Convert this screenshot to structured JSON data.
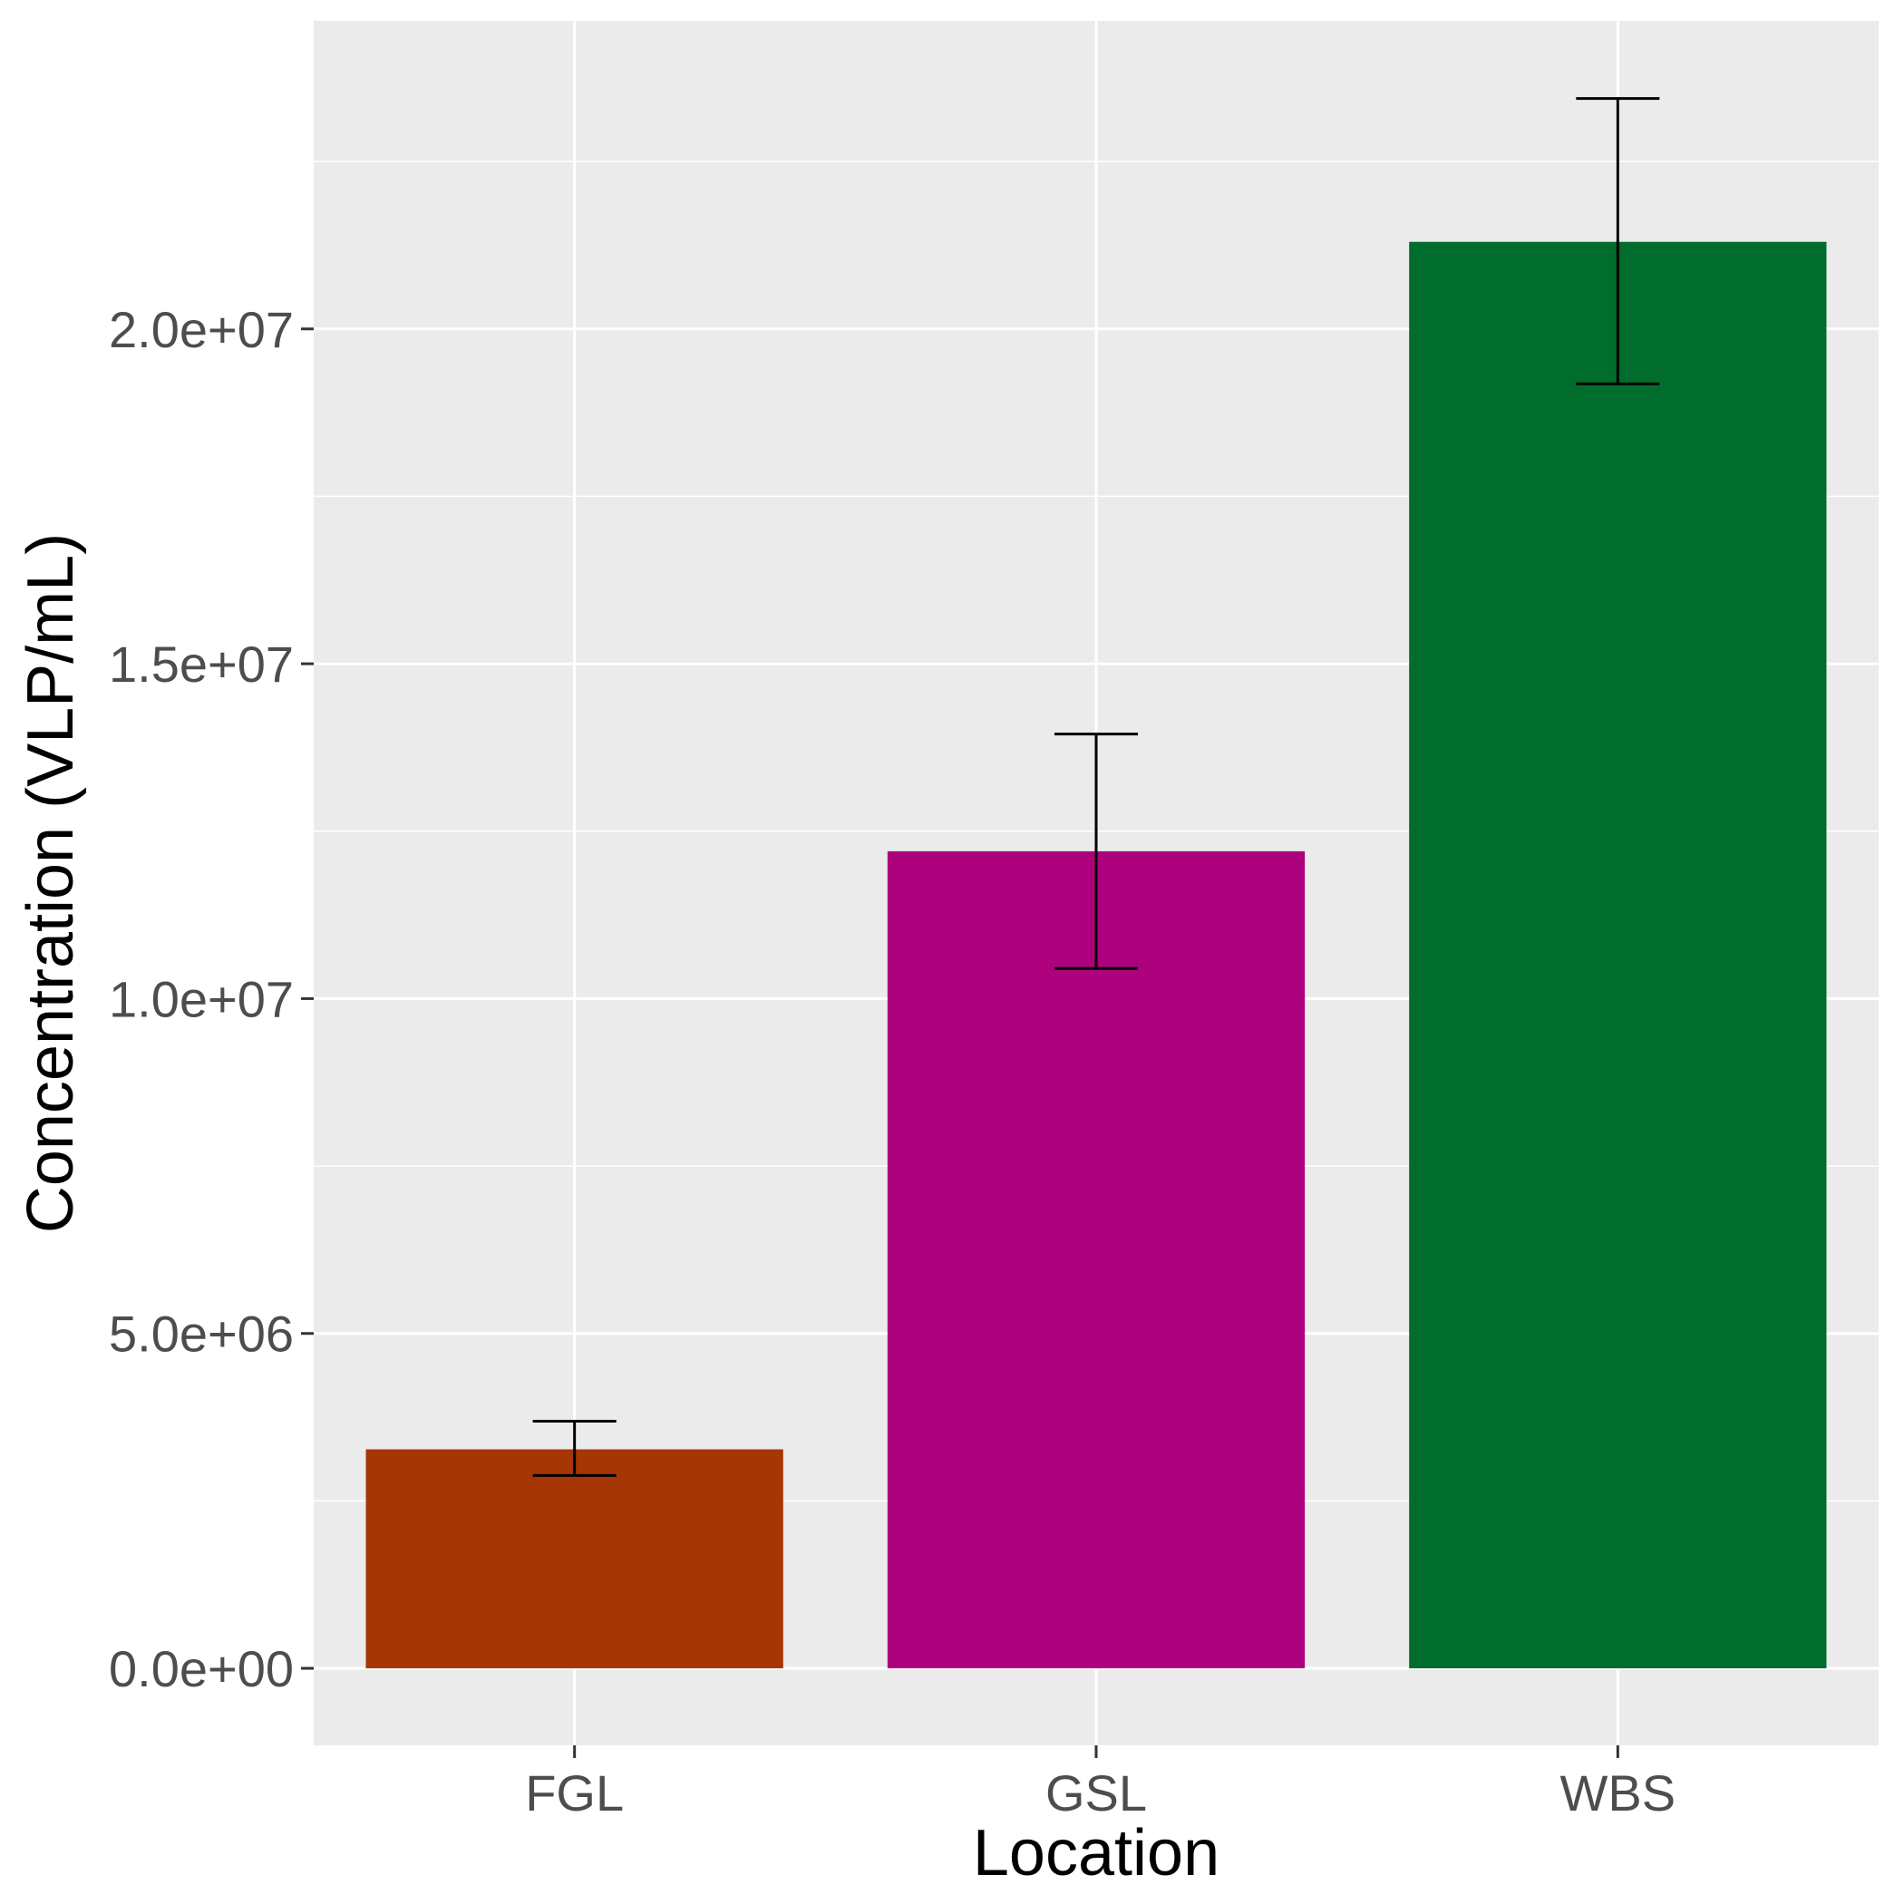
{
  "chart_data": {
    "type": "bar",
    "xlabel": "Location",
    "ylabel": "Concentration (VLP/mL)",
    "categories": [
      "FGL",
      "GSL",
      "WBS"
    ],
    "values": [
      3270000,
      12200000,
      21300000
    ],
    "error_low": [
      2880000,
      10450000,
      19180000
    ],
    "error_high": [
      3690000,
      13950000,
      23440000
    ],
    "colors": [
      "#A63603",
      "#AE017E",
      "#006D2C"
    ],
    "ylim": [
      -1150000,
      24600000
    ],
    "yticks": [
      0,
      5000000,
      10000000,
      15000000,
      20000000
    ],
    "ytick_labels": [
      "0.0e+00",
      "5.0e+06",
      "1.0e+07",
      "1.5e+07",
      "2.0e+07"
    ],
    "grid": true,
    "legend": "none",
    "panel_color": "#EBEBEB"
  }
}
